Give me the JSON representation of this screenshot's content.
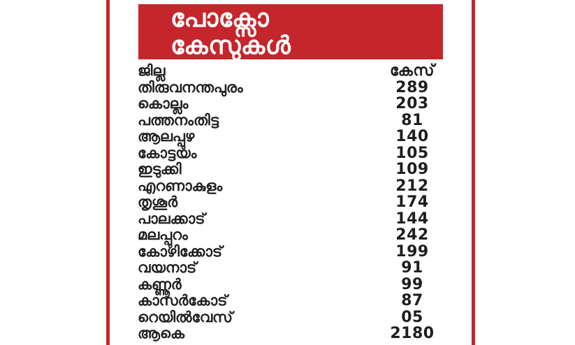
{
  "colors": {
    "accent_red": "#c5262b",
    "text_black": "#1e1e1c",
    "banner_text": "#ffffff",
    "background": "#ffffff"
  },
  "header": {
    "title_line1": "പോക്സോ",
    "title_line2": "കേസുകൾ"
  },
  "table": {
    "columns": {
      "district": "ജില്ല",
      "cases": "കേസ്"
    },
    "rows": [
      {
        "district": "തിരുവനന്തപുരം",
        "cases": "289"
      },
      {
        "district": "കൊല്ലം",
        "cases": "203"
      },
      {
        "district": "പത്തനംതിട്ട",
        "cases": "81"
      },
      {
        "district": "ആലപ്പുഴ",
        "cases": "140"
      },
      {
        "district": "കോട്ടയം",
        "cases": "105"
      },
      {
        "district": "ഇടുക്കി",
        "cases": "109"
      },
      {
        "district": "എറണാകുളം",
        "cases": "212"
      },
      {
        "district": "തൃശൂർ",
        "cases": "174"
      },
      {
        "district": "പാലക്കാട്",
        "cases": "144"
      },
      {
        "district": "മലപ്പുറം",
        "cases": "242"
      },
      {
        "district": "കോഴിക്കോട്",
        "cases": "199"
      },
      {
        "district": "വയനാട്",
        "cases": "91"
      },
      {
        "district": "കണ്ണൂർ",
        "cases": "99"
      },
      {
        "district": "കാസർകോട്",
        "cases": "87"
      },
      {
        "district": "റെയിൽവേസ്",
        "cases": "05"
      },
      {
        "district": "ആകെ",
        "cases": "2180"
      }
    ]
  },
  "chart_data": {
    "type": "table",
    "title": "പോക്സോ കേസുകൾ",
    "columns": [
      "ജില്ല",
      "കേസ്"
    ],
    "rows": [
      [
        "തിരുവനന്തപുരം",
        "289"
      ],
      [
        "കൊല്ലം",
        "203"
      ],
      [
        "പത്തനംതിട്ട",
        "81"
      ],
      [
        "ആലപ്പുഴ",
        "140"
      ],
      [
        "കോട്ടയം",
        "105"
      ],
      [
        "ഇടുക്കി",
        "109"
      ],
      [
        "എറണാകുളം",
        "212"
      ],
      [
        "തൃശൂർ",
        "174"
      ],
      [
        "പാലക്കാട്",
        "144"
      ],
      [
        "മലപ്പുറം",
        "242"
      ],
      [
        "കോഴിക്കോട്",
        "199"
      ],
      [
        "വയനാട്",
        "91"
      ],
      [
        "കണ്ണൂർ",
        "99"
      ],
      [
        "കാസർകോട്",
        "87"
      ],
      [
        "റെയിൽവേസ്",
        "05"
      ],
      [
        "ആകെ",
        "2180"
      ]
    ],
    "values_numeric": [
      289,
      203,
      81,
      140,
      105,
      109,
      212,
      174,
      144,
      242,
      199,
      91,
      99,
      87,
      5
    ],
    "total": 2180
  }
}
